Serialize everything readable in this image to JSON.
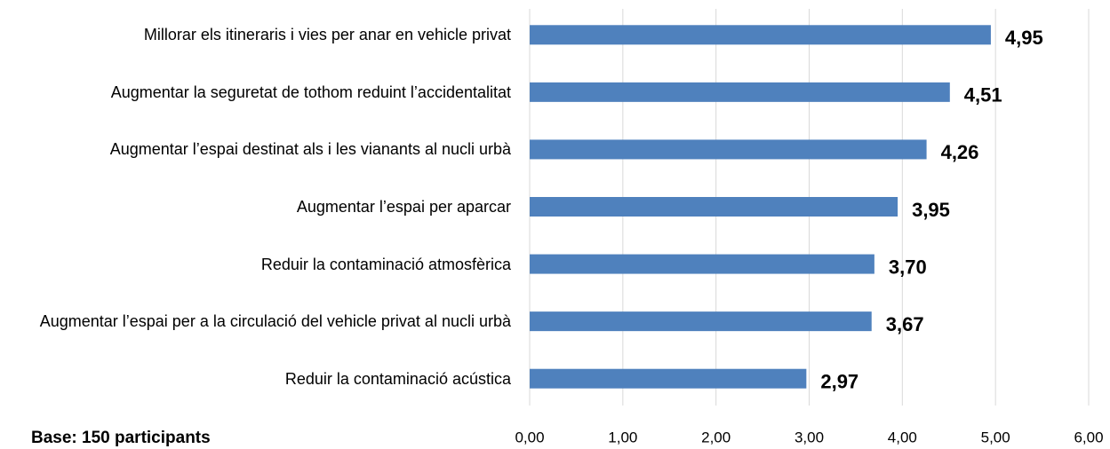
{
  "chart_data": {
    "type": "hbar",
    "note": "Base: 150 participants",
    "categories": [
      "Millorar els itineraris i vies per anar en vehicle privat",
      "Augmentar la seguretat de tothom reduint l’accidentalitat",
      "Augmentar l’espai destinat als i les vianants al nucli urbà",
      "Augmentar l’espai per aparcar",
      "Reduir la contaminació atmosfèrica",
      "Augmentar l’espai per a la circulació del vehicle privat al nucli urbà",
      "Reduir la contaminació acústica"
    ],
    "values": [
      4.95,
      4.51,
      4.26,
      3.95,
      3.7,
      3.67,
      2.97
    ],
    "value_labels": [
      "4,95",
      "4,51",
      "4,26",
      "3,95",
      "3,70",
      "3,67",
      "2,97"
    ],
    "color": "#4f81bd",
    "xlim": [
      0,
      6
    ],
    "xticks": [
      {
        "value": 0,
        "label": "0,00"
      },
      {
        "value": 1,
        "label": "1,00"
      },
      {
        "value": 2,
        "label": "2,00"
      },
      {
        "value": 3,
        "label": "3,00"
      },
      {
        "value": 4,
        "label": "4,00"
      },
      {
        "value": 5,
        "label": "5,00"
      },
      {
        "value": 6,
        "label": "6,00"
      }
    ],
    "grid": true
  }
}
